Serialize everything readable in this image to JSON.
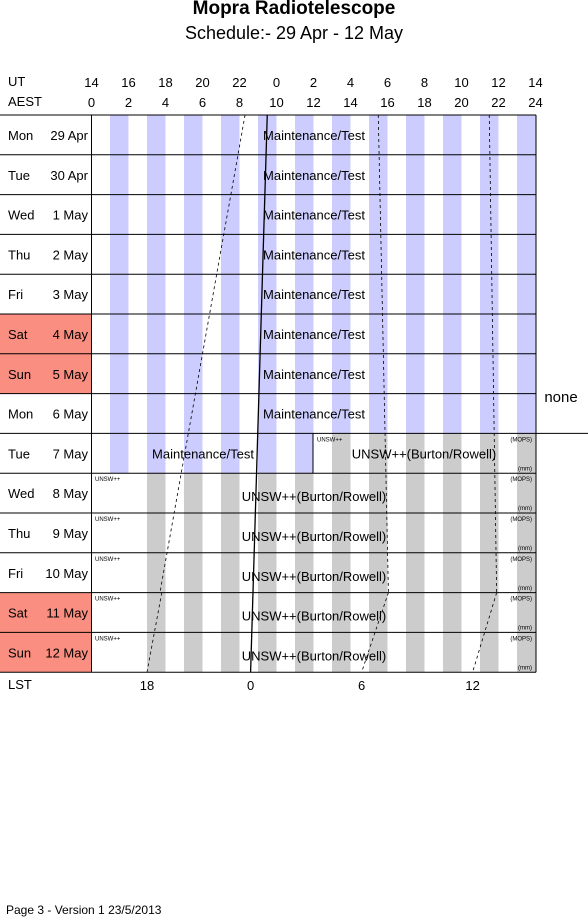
{
  "title": "Mopra Radiotelescope",
  "subtitle": "Schedule:- 29 Apr - 12 May",
  "header": {
    "ut_label": "UT",
    "aest_label": "AEST",
    "ut_ticks": [
      "14",
      "16",
      "18",
      "20",
      "22",
      "0",
      "2",
      "4",
      "6",
      "8",
      "10",
      "12",
      "14"
    ],
    "aest_ticks": [
      "0",
      "2",
      "4",
      "6",
      "8",
      "10",
      "12",
      "14",
      "16",
      "18",
      "20",
      "22",
      "24"
    ]
  },
  "lst": {
    "label": "LST",
    "ticks": [
      {
        "label": "18",
        "aest": 3.0
      },
      {
        "label": "0",
        "aest": 8.6
      },
      {
        "label": "6",
        "aest": 14.6
      },
      {
        "label": "12",
        "aest": 20.6
      }
    ]
  },
  "days": [
    {
      "day": "Mon",
      "date": "29 Apr",
      "weekend": false
    },
    {
      "day": "Tue",
      "date": "30 Apr",
      "weekend": false
    },
    {
      "day": "Wed",
      "date": "1 May",
      "weekend": false
    },
    {
      "day": "Thu",
      "date": "2 May",
      "weekend": false
    },
    {
      "day": "Fri",
      "date": "3 May",
      "weekend": false
    },
    {
      "day": "Sat",
      "date": "4 May",
      "weekend": true
    },
    {
      "day": "Sun",
      "date": "5 May",
      "weekend": true
    },
    {
      "day": "Mon",
      "date": "6 May",
      "weekend": false
    },
    {
      "day": "Tue",
      "date": "7 May",
      "weekend": false
    },
    {
      "day": "Wed",
      "date": "8 May",
      "weekend": false
    },
    {
      "day": "Thu",
      "date": "9 May",
      "weekend": false
    },
    {
      "day": "Fri",
      "date": "10 May",
      "weekend": false
    },
    {
      "day": "Sat",
      "date": "11 May",
      "weekend": true
    },
    {
      "day": "Sun",
      "date": "12 May",
      "weekend": true
    }
  ],
  "maintenance_label": "Maintenance/Test",
  "unsw_label": "UNSW++(Burton/Rowell)",
  "tag_small": "UNSW++",
  "tag_mops": "(MOPS)",
  "tag_mm": "(mm)",
  "side_note": "none",
  "footer": "Page 3 - Version 1  23/5/2013",
  "colors": {
    "weekend": "#fa8e80",
    "night_maintenance": "#ccccff",
    "night_unsw": "#cccccc",
    "grid": "#000000"
  }
}
